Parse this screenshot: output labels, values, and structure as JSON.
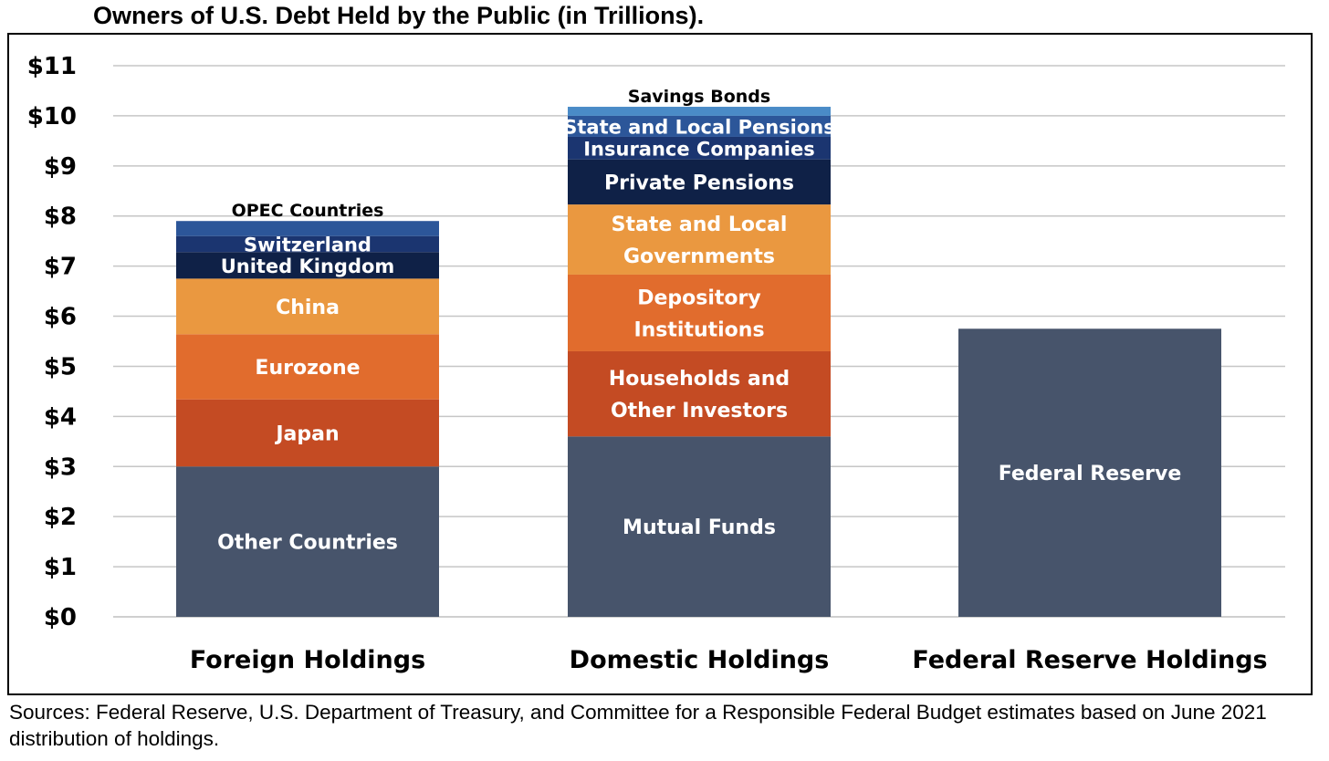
{
  "chart_data": {
    "type": "bar",
    "stacked": true,
    "title": "Owners of U.S. Debt Held by the Public (in Trillions).",
    "xlabel": "",
    "ylabel": "",
    "ylim": [
      0,
      11
    ],
    "yticks": [
      "$0",
      "$1",
      "$2",
      "$3",
      "$4",
      "$5",
      "$6",
      "$7",
      "$8",
      "$9",
      "$10",
      "$11"
    ],
    "grid": true,
    "legend": "none",
    "categories": [
      "Foreign Holdings",
      "Domestic Holdings",
      "Federal Reserve Holdings"
    ],
    "bars": [
      {
        "category": "Foreign Holdings",
        "segments": [
          {
            "label": "Other Countries",
            "value": 3.0,
            "color": "#47546b",
            "text_color": "#ffffff"
          },
          {
            "label": "Japan",
            "value": 1.34,
            "color": "#c44b23",
            "text_color": "#ffffff"
          },
          {
            "label": "Eurozone",
            "value": 1.3,
            "color": "#e16c2d",
            "text_color": "#ffffff"
          },
          {
            "label": "China",
            "value": 1.11,
            "color": "#ea9840",
            "text_color": "#ffffff"
          },
          {
            "label": "United Kingdom",
            "value": 0.53,
            "color": "#0f2147",
            "text_color": "#ffffff"
          },
          {
            "label": "Switzerland",
            "value": 0.32,
            "color": "#1b3570",
            "text_color": "#ffffff"
          },
          {
            "label": "OPEC Countries",
            "value": 0.3,
            "color": "#2c5699",
            "text_color": "#000000",
            "label_above": true
          }
        ]
      },
      {
        "category": "Domestic Holdings",
        "segments": [
          {
            "label": "Mutual Funds",
            "value": 3.6,
            "color": "#47546b",
            "text_color": "#ffffff"
          },
          {
            "label": "Households and\nOther Investors",
            "value": 1.7,
            "color": "#c44b23",
            "text_color": "#ffffff"
          },
          {
            "label": "Depository\nInstitutions",
            "value": 1.53,
            "color": "#e16c2d",
            "text_color": "#ffffff"
          },
          {
            "label": "State and Local\nGovernments",
            "value": 1.4,
            "color": "#ea9840",
            "text_color": "#ffffff"
          },
          {
            "label": "Private Pensions",
            "value": 0.9,
            "color": "#0f2147",
            "text_color": "#ffffff"
          },
          {
            "label": "Insurance Companies",
            "value": 0.45,
            "color": "#1b3570",
            "text_color": "#ffffff"
          },
          {
            "label": "State and Local Pensions",
            "value": 0.42,
            "color": "#2c5699",
            "text_color": "#ffffff"
          },
          {
            "label": "Savings Bonds",
            "value": 0.18,
            "color": "#4a8bc7",
            "text_color": "#000000",
            "label_above": true
          }
        ]
      },
      {
        "category": "Federal Reserve Holdings",
        "segments": [
          {
            "label": "Federal Reserve",
            "value": 5.75,
            "color": "#47546b",
            "text_color": "#ffffff"
          }
        ]
      }
    ],
    "gridline_color": "#c6c6c6",
    "baseline_color": "#bfbfbf"
  },
  "source": "Sources: Federal Reserve, U.S. Department of Treasury, and Committee for a Responsible Federal Budget estimates based on June 2021 distribution of holdings."
}
